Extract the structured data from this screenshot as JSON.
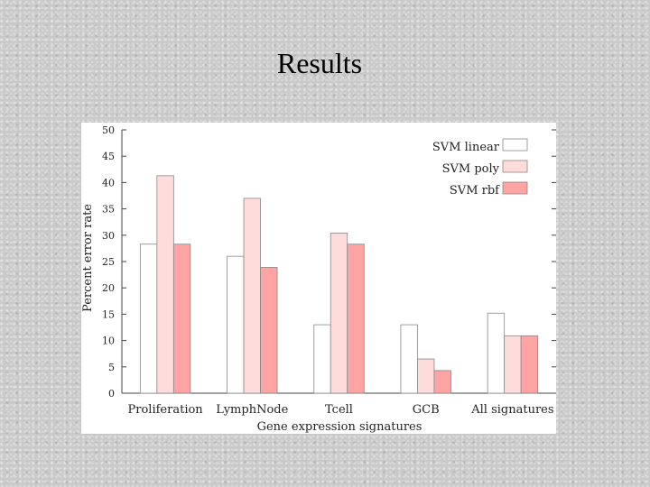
{
  "slide": {
    "title": "Results"
  },
  "chart_data": {
    "type": "bar",
    "title": "",
    "xlabel": "Gene expression signatures",
    "ylabel": "Percent error rate",
    "ylim": [
      0,
      50
    ],
    "yticks": [
      0,
      5,
      10,
      15,
      20,
      25,
      30,
      35,
      40,
      45,
      50
    ],
    "categories": [
      "Proliferation",
      "LymphNode",
      "Tcell",
      "GCB",
      "All signatures"
    ],
    "series": [
      {
        "name": "SVM linear",
        "color": "#ffffff",
        "values": [
          28.3,
          26.0,
          13.0,
          13.0,
          15.2
        ]
      },
      {
        "name": "SVM poly",
        "color": "#ffdcdc",
        "values": [
          41.3,
          37.0,
          30.4,
          6.5,
          10.9
        ]
      },
      {
        "name": "SVM rbf",
        "color": "#ffa3a3",
        "values": [
          28.3,
          23.9,
          28.3,
          4.3,
          10.9
        ]
      }
    ],
    "legend_position": "top-right",
    "grid": false
  }
}
